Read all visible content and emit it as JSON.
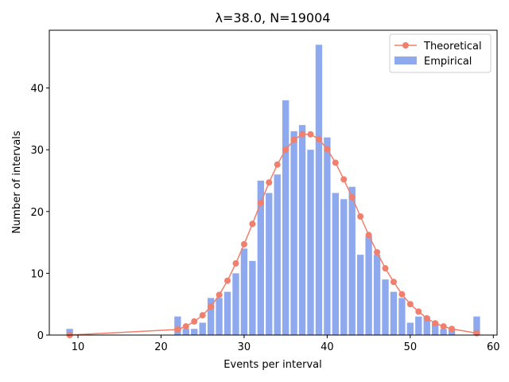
{
  "chart_data": {
    "type": "bar",
    "title": "λ=38.0, N=19004",
    "xlabel": "Events per interval",
    "ylabel": "Number of intervals",
    "xlim": [
      6.55,
      60.45
    ],
    "ylim": [
      0,
      49.35
    ],
    "xticks": [
      10,
      20,
      30,
      40,
      50,
      60
    ],
    "yticks": [
      0,
      10,
      20,
      30,
      40
    ],
    "legend_position": "top-right",
    "colors": {
      "empirical": "#8ea9ee",
      "theoretical": "#f07f6e"
    },
    "series": [
      {
        "name": "Empirical",
        "kind": "bar",
        "x": [
          9,
          22,
          23,
          24,
          25,
          26,
          27,
          28,
          29,
          30,
          31,
          32,
          33,
          34,
          35,
          36,
          37,
          38,
          39,
          40,
          41,
          42,
          43,
          44,
          45,
          46,
          47,
          48,
          49,
          50,
          51,
          52,
          53,
          54,
          55,
          58
        ],
        "values": [
          1,
          3,
          1,
          1,
          2,
          6,
          6,
          7,
          10,
          14,
          12,
          25,
          23,
          26,
          38,
          33,
          34,
          30,
          47,
          32,
          23,
          22,
          24,
          13,
          16,
          13,
          9,
          7,
          6,
          2,
          3,
          3,
          2,
          1,
          1,
          3
        ]
      },
      {
        "name": "Theoretical",
        "kind": "line",
        "x": [
          9,
          22,
          23,
          24,
          25,
          26,
          27,
          28,
          29,
          30,
          31,
          32,
          33,
          34,
          35,
          36,
          37,
          38,
          39,
          40,
          41,
          42,
          43,
          44,
          45,
          46,
          47,
          48,
          49,
          50,
          51,
          52,
          53,
          54,
          55,
          58
        ],
        "values": [
          0.0,
          0.9,
          1.4,
          2.2,
          3.2,
          4.6,
          6.5,
          8.8,
          11.6,
          14.7,
          18.0,
          21.4,
          24.7,
          27.6,
          30.0,
          31.6,
          32.5,
          32.5,
          31.7,
          30.1,
          27.9,
          25.2,
          22.3,
          19.2,
          16.2,
          13.4,
          10.8,
          8.6,
          6.6,
          5.0,
          3.8,
          2.7,
          1.9,
          1.4,
          1.0,
          0.3
        ]
      }
    ]
  }
}
